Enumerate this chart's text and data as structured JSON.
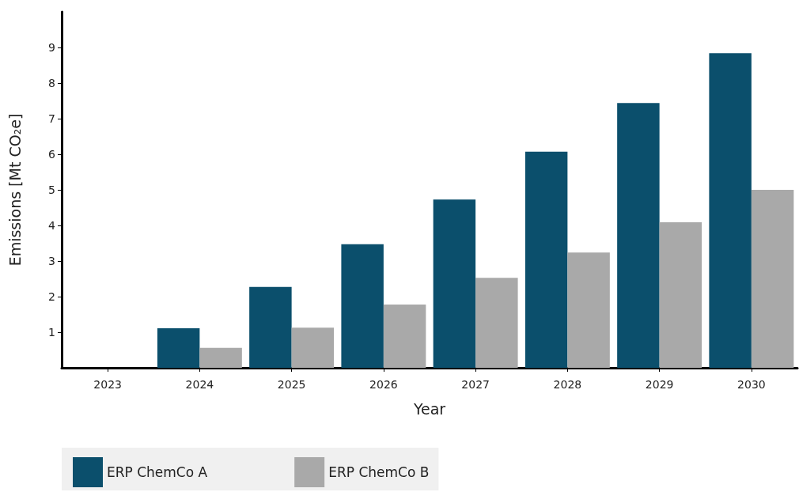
{
  "chart_data": {
    "type": "bar",
    "xlabel": "Year",
    "ylabel": "Emissions [Mt CO₂e]",
    "categories": [
      "2023",
      "2024",
      "2025",
      "2026",
      "2027",
      "2028",
      "2029",
      "2030"
    ],
    "series": [
      {
        "name": "ERP ChemCo A",
        "color": "#0b4f6c",
        "values": [
          0,
          1.11,
          2.27,
          3.47,
          4.73,
          6.07,
          7.44,
          8.84
        ]
      },
      {
        "name": "ERP ChemCo B",
        "color": "#a9a9a9",
        "values": [
          0,
          0.56,
          1.13,
          1.78,
          2.53,
          3.24,
          4.09,
          5.0
        ]
      }
    ],
    "ylim": [
      0,
      10
    ],
    "yticks": [
      1,
      2,
      3,
      4,
      5,
      6,
      7,
      8,
      9
    ],
    "grid": false,
    "legend": "bottom"
  }
}
